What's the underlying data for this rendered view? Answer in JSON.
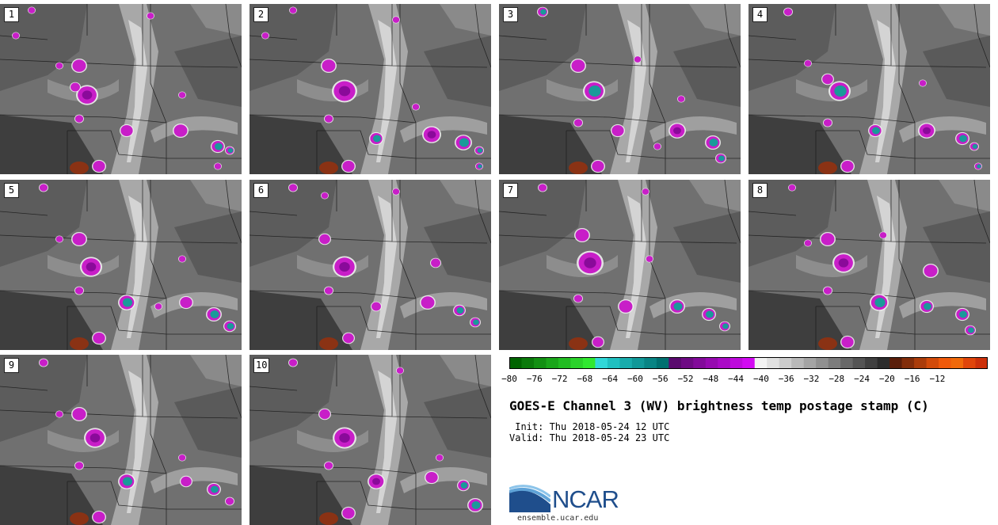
{
  "panels": [
    {
      "label": "1",
      "blobs": [
        [
          110,
          115,
          14,
          "m"
        ],
        [
          100,
          78,
          10,
          "m"
        ],
        [
          95,
          105,
          7,
          "m"
        ],
        [
          160,
          160,
          9,
          "m"
        ],
        [
          228,
          160,
          10,
          "m"
        ],
        [
          275,
          180,
          9,
          "c"
        ],
        [
          290,
          185,
          6,
          "c"
        ],
        [
          125,
          205,
          9,
          "m"
        ],
        [
          20,
          40,
          5,
          "m"
        ],
        [
          40,
          8,
          5,
          "m"
        ],
        [
          230,
          115,
          5,
          "m"
        ],
        [
          190,
          15,
          5,
          "m"
        ],
        [
          75,
          78,
          5,
          "m"
        ],
        [
          100,
          145,
          6,
          "m"
        ],
        [
          275,
          205,
          5,
          "m"
        ]
      ]
    },
    {
      "label": "2",
      "blobs": [
        [
          120,
          110,
          16,
          "m"
        ],
        [
          100,
          78,
          10,
          "m"
        ],
        [
          475,
          0,
          0,
          "m"
        ],
        [
          160,
          170,
          9,
          "c"
        ],
        [
          230,
          165,
          12,
          "m"
        ],
        [
          270,
          175,
          11,
          "c"
        ],
        [
          290,
          185,
          6,
          "c"
        ],
        [
          125,
          205,
          9,
          "m"
        ],
        [
          20,
          40,
          5,
          "m"
        ],
        [
          55,
          8,
          5,
          "m"
        ],
        [
          210,
          130,
          5,
          "m"
        ],
        [
          185,
          20,
          5,
          "m"
        ],
        [
          100,
          145,
          6,
          "m"
        ],
        [
          290,
          205,
          5,
          "c"
        ]
      ]
    },
    {
      "label": "3",
      "blobs": [
        [
          120,
          110,
          14,
          "c"
        ],
        [
          100,
          78,
          10,
          "m"
        ],
        [
          150,
          160,
          9,
          "m"
        ],
        [
          225,
          160,
          11,
          "m"
        ],
        [
          270,
          175,
          10,
          "c"
        ],
        [
          280,
          195,
          7,
          "c"
        ],
        [
          125,
          205,
          9,
          "m"
        ],
        [
          55,
          10,
          7,
          "c"
        ],
        [
          175,
          70,
          5,
          "m"
        ],
        [
          230,
          120,
          5,
          "m"
        ],
        [
          100,
          150,
          6,
          "m"
        ],
        [
          200,
          180,
          5,
          "m"
        ]
      ]
    },
    {
      "label": "4",
      "blobs": [
        [
          115,
          110,
          14,
          "c"
        ],
        [
          100,
          95,
          8,
          "m"
        ],
        [
          160,
          160,
          9,
          "c"
        ],
        [
          225,
          160,
          11,
          "m"
        ],
        [
          270,
          170,
          9,
          "c"
        ],
        [
          285,
          180,
          6,
          "c"
        ],
        [
          125,
          205,
          9,
          "m"
        ],
        [
          50,
          10,
          6,
          "m"
        ],
        [
          75,
          75,
          5,
          "m"
        ],
        [
          220,
          100,
          5,
          "m"
        ],
        [
          100,
          150,
          6,
          "m"
        ],
        [
          290,
          205,
          5,
          "c"
        ]
      ]
    },
    {
      "label": "5",
      "blobs": [
        [
          115,
          110,
          14,
          "m"
        ],
        [
          100,
          75,
          10,
          "m"
        ],
        [
          160,
          155,
          11,
          "c"
        ],
        [
          235,
          155,
          9,
          "m"
        ],
        [
          270,
          170,
          10,
          "c"
        ],
        [
          290,
          185,
          8,
          "c"
        ],
        [
          125,
          200,
          9,
          "m"
        ],
        [
          55,
          10,
          6,
          "m"
        ],
        [
          75,
          75,
          5,
          "m"
        ],
        [
          230,
          100,
          5,
          "m"
        ],
        [
          100,
          140,
          6,
          "m"
        ],
        [
          200,
          160,
          5,
          "m"
        ]
      ]
    },
    {
      "label": "6",
      "blobs": [
        [
          120,
          110,
          15,
          "m"
        ],
        [
          95,
          75,
          8,
          "m"
        ],
        [
          160,
          160,
          7,
          "m"
        ],
        [
          235,
          105,
          7,
          "m"
        ],
        [
          225,
          155,
          10,
          "m"
        ],
        [
          265,
          165,
          8,
          "c"
        ],
        [
          285,
          180,
          7,
          "c"
        ],
        [
          125,
          200,
          8,
          "m"
        ],
        [
          55,
          10,
          6,
          "m"
        ],
        [
          95,
          20,
          5,
          "m"
        ],
        [
          100,
          140,
          6,
          "m"
        ],
        [
          185,
          15,
          5,
          "m"
        ]
      ]
    },
    {
      "label": "7",
      "blobs": [
        [
          115,
          105,
          17,
          "m"
        ],
        [
          105,
          70,
          10,
          "m"
        ],
        [
          160,
          160,
          10,
          "m"
        ],
        [
          225,
          160,
          10,
          "c"
        ],
        [
          265,
          170,
          9,
          "c"
        ],
        [
          285,
          185,
          7,
          "c"
        ],
        [
          125,
          205,
          8,
          "m"
        ],
        [
          55,
          10,
          6,
          "m"
        ],
        [
          190,
          100,
          5,
          "m"
        ],
        [
          100,
          150,
          6,
          "m"
        ],
        [
          185,
          15,
          5,
          "m"
        ]
      ]
    },
    {
      "label": "8",
      "blobs": [
        [
          120,
          105,
          14,
          "m"
        ],
        [
          100,
          75,
          10,
          "m"
        ],
        [
          165,
          155,
          12,
          "c"
        ],
        [
          230,
          115,
          10,
          "m"
        ],
        [
          225,
          160,
          9,
          "c"
        ],
        [
          270,
          170,
          9,
          "c"
        ],
        [
          280,
          190,
          7,
          "c"
        ],
        [
          125,
          205,
          9,
          "m"
        ],
        [
          55,
          10,
          5,
          "m"
        ],
        [
          75,
          80,
          5,
          "m"
        ],
        [
          100,
          140,
          6,
          "m"
        ],
        [
          170,
          70,
          5,
          "m"
        ]
      ]
    },
    {
      "label": "9",
      "blobs": [
        [
          120,
          105,
          14,
          "m"
        ],
        [
          100,
          75,
          10,
          "m"
        ],
        [
          160,
          160,
          11,
          "c"
        ],
        [
          235,
          160,
          8,
          "m"
        ],
        [
          270,
          170,
          9,
          "c"
        ],
        [
          290,
          185,
          6,
          "m"
        ],
        [
          125,
          205,
          9,
          "m"
        ],
        [
          55,
          10,
          6,
          "m"
        ],
        [
          100,
          140,
          6,
          "m"
        ],
        [
          75,
          75,
          5,
          "m"
        ],
        [
          230,
          130,
          5,
          "m"
        ]
      ]
    },
    {
      "label": "10",
      "blobs": [
        [
          120,
          105,
          15,
          "m"
        ],
        [
          95,
          75,
          8,
          "m"
        ],
        [
          160,
          160,
          11,
          "m"
        ],
        [
          230,
          155,
          9,
          "m"
        ],
        [
          270,
          165,
          8,
          "c"
        ],
        [
          285,
          190,
          10,
          "c"
        ],
        [
          125,
          200,
          9,
          "m"
        ],
        [
          55,
          10,
          6,
          "m"
        ],
        [
          240,
          130,
          5,
          "m"
        ],
        [
          100,
          140,
          6,
          "m"
        ],
        [
          190,
          20,
          5,
          "m"
        ]
      ]
    }
  ],
  "colorbar": {
    "ticks": [
      "−80",
      "−76",
      "−72",
      "−68",
      "−64",
      "−60",
      "−56",
      "−52",
      "−48",
      "−44",
      "−40",
      "−36",
      "−32",
      "−28",
      "−24",
      "−20",
      "−16",
      "−12"
    ],
    "colors": [
      "#006400",
      "#0a7a0a",
      "#129012",
      "#1aa61a",
      "#22bc22",
      "#2ad22a",
      "#30e830",
      "#30d8d8",
      "#20c0c0",
      "#18acac",
      "#109898",
      "#088484",
      "#007070",
      "#5a0a6e",
      "#6e0a84",
      "#820a9a",
      "#960ab0",
      "#aa0ac6",
      "#be0adc",
      "#d20af2",
      "#f2f2f2",
      "#e0e0e0",
      "#cccccc",
      "#b8b8b8",
      "#a4a4a4",
      "#909090",
      "#7c7c7c",
      "#686868",
      "#545454",
      "#404040",
      "#2c2c2c",
      "#5a1e0a",
      "#822d0a",
      "#aa3c0a",
      "#d24b0a",
      "#f05a0a",
      "#f0690a",
      "#e0450a",
      "#cc300a"
    ]
  },
  "title": "GOES-E Channel 3 (WV) brightness temp postage stamp (C)",
  "init_line": " Init: Thu 2018-05-24 12 UTC",
  "valid_line": "Valid: Thu 2018-05-24 23 UTC",
  "logo": {
    "text": "NCAR",
    "url": "ensemble.ucar.edu"
  },
  "colors": {
    "magenta": "#c81ec8",
    "cyan": "#1a9a9a",
    "rust": "#8a3214"
  }
}
